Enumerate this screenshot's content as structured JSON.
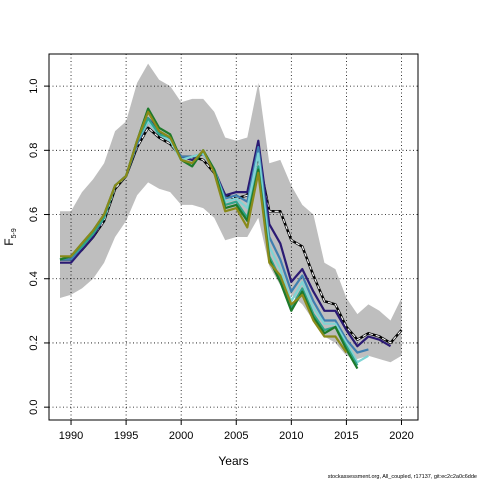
{
  "chart_data": {
    "type": "line",
    "title": "",
    "xlabel": "Years",
    "ylabel_main": "F",
    "ylabel_sub": "5-9",
    "xlim": [
      1988,
      2021.5
    ],
    "ylim": [
      -0.04,
      1.1
    ],
    "x_ticks": [
      1990,
      1995,
      2000,
      2005,
      2010,
      2015,
      2020
    ],
    "y_ticks": [
      0.0,
      0.2,
      0.4,
      0.6,
      0.8,
      1.0
    ],
    "y_tick_labels": [
      "0.0",
      "0.2",
      "0.4",
      "0.6",
      "0.8",
      "1.0"
    ],
    "grid": true,
    "footer": "stockassessment.org, All_coupled, r17137, git:ec2c2a0c6dde",
    "band": {
      "x": [
        1989,
        1990,
        1991,
        1992,
        1993,
        1994,
        1995,
        1996,
        1997,
        1998,
        1999,
        2000,
        2001,
        2002,
        2003,
        2004,
        2005,
        2006,
        2007,
        2008,
        2009,
        2010,
        2011,
        2012,
        2013,
        2014,
        2015,
        2016,
        2017,
        2018,
        2019,
        2020
      ],
      "lower": [
        0.34,
        0.35,
        0.37,
        0.4,
        0.45,
        0.53,
        0.58,
        0.66,
        0.7,
        0.68,
        0.67,
        0.63,
        0.63,
        0.62,
        0.59,
        0.52,
        0.53,
        0.53,
        0.59,
        0.44,
        0.38,
        0.35,
        0.32,
        0.27,
        0.22,
        0.2,
        0.16,
        0.15,
        0.16,
        0.15,
        0.14,
        0.16
      ],
      "upper": [
        0.61,
        0.61,
        0.67,
        0.71,
        0.76,
        0.86,
        0.89,
        1.01,
        1.07,
        1.02,
        1.0,
        0.95,
        0.96,
        0.96,
        0.92,
        0.84,
        0.83,
        0.84,
        1.01,
        0.76,
        0.77,
        0.69,
        0.63,
        0.6,
        0.45,
        0.43,
        0.34,
        0.29,
        0.32,
        0.3,
        0.27,
        0.34
      ],
      "color": "#bebebe"
    },
    "series": [
      {
        "color": "#000000",
        "width": 2.5,
        "dashed": false,
        "x": [
          1989,
          1990,
          1991,
          1992,
          1993,
          1994,
          1995,
          1996,
          1997,
          1998,
          1999,
          2000,
          2001,
          2002,
          2003,
          2004,
          2005,
          2006,
          2007,
          2008,
          2009,
          2010,
          2011,
          2012,
          2013,
          2014,
          2015,
          2016,
          2017,
          2018,
          2019,
          2020
        ],
        "values": [
          0.46,
          0.46,
          0.49,
          0.53,
          0.58,
          0.68,
          0.72,
          0.81,
          0.87,
          0.84,
          0.82,
          0.78,
          0.78,
          0.77,
          0.73,
          0.66,
          0.65,
          0.66,
          0.78,
          0.61,
          0.61,
          0.52,
          0.5,
          0.41,
          0.33,
          0.32,
          0.25,
          0.21,
          0.23,
          0.22,
          0.2,
          0.24
        ]
      },
      {
        "color": "#ffffff",
        "width": 1.1,
        "dashed": true,
        "x": [
          1989,
          1990,
          1991,
          1992,
          1993,
          1994,
          1995,
          1996,
          1997,
          1998,
          1999,
          2000,
          2001,
          2002,
          2003,
          2004,
          2005,
          2006,
          2007,
          2008,
          2009,
          2010,
          2011,
          2012,
          2013,
          2014,
          2015,
          2016,
          2017,
          2018,
          2019,
          2020
        ],
        "values": [
          0.46,
          0.46,
          0.49,
          0.53,
          0.58,
          0.68,
          0.72,
          0.81,
          0.87,
          0.84,
          0.82,
          0.78,
          0.78,
          0.77,
          0.73,
          0.66,
          0.65,
          0.66,
          0.78,
          0.61,
          0.61,
          0.52,
          0.5,
          0.41,
          0.33,
          0.32,
          0.25,
          0.21,
          0.23,
          0.22,
          0.2,
          0.24
        ]
      },
      {
        "color": "#2b1a73",
        "width": 2.2,
        "dashed": false,
        "x": [
          1989,
          1990,
          1991,
          1992,
          1993,
          1994,
          1995,
          1996,
          1997,
          1998,
          1999,
          2000,
          2001,
          2002,
          2003,
          2004,
          2005,
          2006,
          2007,
          2008,
          2009,
          2010,
          2011,
          2012,
          2013,
          2014,
          2015,
          2016,
          2017,
          2018,
          2019
        ],
        "values": [
          0.45,
          0.45,
          0.49,
          0.53,
          0.59,
          0.69,
          0.72,
          0.82,
          0.9,
          0.86,
          0.83,
          0.78,
          0.77,
          0.79,
          0.74,
          0.66,
          0.67,
          0.67,
          0.83,
          0.57,
          0.51,
          0.39,
          0.43,
          0.36,
          0.3,
          0.3,
          0.24,
          0.19,
          0.22,
          0.21,
          0.19
        ]
      },
      {
        "color": "#3f7fb0",
        "width": 2.2,
        "dashed": false,
        "x": [
          1989,
          1990,
          1991,
          1992,
          1993,
          1994,
          1995,
          1996,
          1997,
          1998,
          1999,
          2000,
          2001,
          2002,
          2003,
          2004,
          2005,
          2006,
          2007,
          2008,
          2009,
          2010,
          2011,
          2012,
          2013,
          2014,
          2015,
          2016,
          2017
        ],
        "values": [
          0.46,
          0.46,
          0.5,
          0.54,
          0.59,
          0.69,
          0.72,
          0.82,
          0.89,
          0.85,
          0.83,
          0.78,
          0.78,
          0.79,
          0.74,
          0.65,
          0.66,
          0.64,
          0.81,
          0.53,
          0.46,
          0.36,
          0.41,
          0.33,
          0.27,
          0.27,
          0.21,
          0.17,
          0.18
        ]
      },
      {
        "color": "#7fd4d4",
        "width": 2.2,
        "dashed": false,
        "x": [
          1989,
          1990,
          1991,
          1992,
          1993,
          1994,
          1995,
          1996,
          1997,
          1998,
          1999,
          2000,
          2001,
          2002,
          2003,
          2004,
          2005,
          2006,
          2007,
          2008,
          2009,
          2010,
          2011,
          2012,
          2013,
          2014,
          2015,
          2016,
          2017
        ],
        "values": [
          0.46,
          0.47,
          0.5,
          0.54,
          0.59,
          0.69,
          0.72,
          0.83,
          0.89,
          0.85,
          0.83,
          0.77,
          0.78,
          0.79,
          0.74,
          0.64,
          0.65,
          0.62,
          0.79,
          0.5,
          0.43,
          0.33,
          0.39,
          0.31,
          0.26,
          0.26,
          0.2,
          0.14,
          0.16
        ]
      },
      {
        "color": "#2ea38a",
        "width": 2.2,
        "dashed": false,
        "x": [
          1989,
          1990,
          1991,
          1992,
          1993,
          1994,
          1995,
          1996,
          1997,
          1998,
          1999,
          2000,
          2001,
          2002,
          2003,
          2004,
          2005,
          2006,
          2007,
          2008,
          2009,
          2010,
          2011,
          2012,
          2013,
          2014,
          2015,
          2016
        ],
        "values": [
          0.46,
          0.47,
          0.5,
          0.54,
          0.59,
          0.69,
          0.72,
          0.83,
          0.9,
          0.85,
          0.84,
          0.77,
          0.76,
          0.8,
          0.74,
          0.63,
          0.64,
          0.59,
          0.75,
          0.47,
          0.4,
          0.31,
          0.37,
          0.29,
          0.24,
          0.25,
          0.19,
          0.13
        ]
      },
      {
        "color": "#1e7a2b",
        "width": 2.2,
        "dashed": false,
        "x": [
          1989,
          1990,
          1991,
          1992,
          1993,
          1994,
          1995,
          1996,
          1997,
          1998,
          1999,
          2000,
          2001,
          2002,
          2003,
          2004,
          2005,
          2006,
          2007,
          2008,
          2009,
          2010,
          2011,
          2012,
          2013,
          2014,
          2015,
          2016
        ],
        "values": [
          0.46,
          0.47,
          0.51,
          0.55,
          0.6,
          0.69,
          0.72,
          0.83,
          0.93,
          0.87,
          0.85,
          0.77,
          0.75,
          0.8,
          0.74,
          0.62,
          0.63,
          0.58,
          0.74,
          0.46,
          0.39,
          0.3,
          0.36,
          0.28,
          0.23,
          0.25,
          0.18,
          0.12
        ]
      },
      {
        "color": "#8a8a1a",
        "width": 2.2,
        "dashed": false,
        "x": [
          1989,
          1990,
          1991,
          1992,
          1993,
          1994,
          1995,
          1996,
          1997,
          1998,
          1999,
          2000,
          2001,
          2002,
          2003,
          2004,
          2005,
          2006,
          2007,
          2008,
          2009,
          2010,
          2011,
          2012,
          2013,
          2014,
          2015
        ],
        "values": [
          0.47,
          0.47,
          0.51,
          0.55,
          0.6,
          0.69,
          0.72,
          0.83,
          0.92,
          0.86,
          0.84,
          0.77,
          0.76,
          0.8,
          0.73,
          0.61,
          0.62,
          0.56,
          0.73,
          0.45,
          0.41,
          0.32,
          0.35,
          0.27,
          0.22,
          0.22,
          0.17
        ]
      }
    ]
  }
}
